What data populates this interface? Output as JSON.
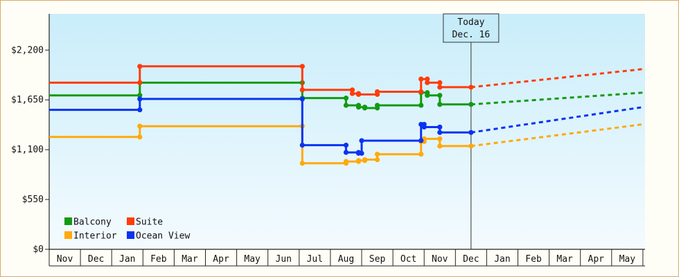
{
  "chart_data": {
    "type": "line",
    "title": "",
    "xlabel": "",
    "ylabel": "",
    "y_ticks": [
      "$0",
      "$550",
      "$1,100",
      "$1,650",
      "$2,200"
    ],
    "ylim": [
      0,
      2600
    ],
    "x_ticks": [
      "Nov",
      "Dec",
      "Jan",
      "Feb",
      "Mar",
      "Apr",
      "May",
      "Jun",
      "Jul",
      "Aug",
      "Sep",
      "Oct",
      "Nov",
      "Dec",
      "Jan",
      "Feb",
      "Mar",
      "Apr",
      "May"
    ],
    "xlim": [
      0,
      19
    ],
    "grid": false,
    "background": "light blue gradient",
    "legend_position": "bottom-left",
    "today_marker": {
      "line1": "Today",
      "line2": "Dec. 16",
      "x": 13.5
    },
    "series": [
      {
        "name": "Balcony",
        "color": "#139a10",
        "points": [
          [
            0,
            1700
          ],
          [
            2.9,
            1700
          ],
          [
            2.9,
            1840
          ],
          [
            8.1,
            1840
          ],
          [
            8.1,
            1670
          ],
          [
            9.5,
            1670
          ],
          [
            9.5,
            1590
          ],
          [
            9.9,
            1590
          ],
          [
            9.9,
            1570
          ],
          [
            10.1,
            1570
          ],
          [
            10.1,
            1560
          ],
          [
            10.5,
            1560
          ],
          [
            10.5,
            1590
          ],
          [
            11.9,
            1590
          ],
          [
            11.9,
            1730
          ],
          [
            12.1,
            1730
          ],
          [
            12.1,
            1700
          ],
          [
            12.5,
            1700
          ],
          [
            12.5,
            1600
          ],
          [
            13.5,
            1600
          ]
        ],
        "forecast": [
          [
            13.5,
            1600
          ],
          [
            19,
            1730
          ]
        ]
      },
      {
        "name": "Suite",
        "color": "#ff3c0a",
        "points": [
          [
            0,
            1840
          ],
          [
            2.9,
            1840
          ],
          [
            2.9,
            2020
          ],
          [
            8.1,
            2020
          ],
          [
            8.1,
            1760
          ],
          [
            9.7,
            1760
          ],
          [
            9.7,
            1720
          ],
          [
            9.9,
            1720
          ],
          [
            9.9,
            1710
          ],
          [
            10.5,
            1710
          ],
          [
            10.5,
            1740
          ],
          [
            11.9,
            1740
          ],
          [
            11.9,
            1880
          ],
          [
            12.1,
            1880
          ],
          [
            12.1,
            1840
          ],
          [
            12.5,
            1840
          ],
          [
            12.5,
            1790
          ],
          [
            13.5,
            1790
          ]
        ],
        "forecast": [
          [
            13.5,
            1790
          ],
          [
            19,
            1990
          ]
        ]
      },
      {
        "name": "Interior",
        "color": "#ffa90c",
        "points": [
          [
            0,
            1240
          ],
          [
            2.9,
            1240
          ],
          [
            2.9,
            1360
          ],
          [
            8.1,
            1360
          ],
          [
            8.1,
            950
          ],
          [
            9.5,
            950
          ],
          [
            9.5,
            970
          ],
          [
            9.9,
            970
          ],
          [
            9.9,
            980
          ],
          [
            10.1,
            980
          ],
          [
            10.1,
            990
          ],
          [
            10.5,
            990
          ],
          [
            10.5,
            1050
          ],
          [
            11.9,
            1050
          ],
          [
            11.9,
            1190
          ],
          [
            12.0,
            1190
          ],
          [
            12.0,
            1220
          ],
          [
            12.5,
            1220
          ],
          [
            12.5,
            1140
          ],
          [
            13.5,
            1140
          ]
        ],
        "forecast": [
          [
            13.5,
            1140
          ],
          [
            19,
            1380
          ]
        ]
      },
      {
        "name": "Ocean View",
        "color": "#0a32f2",
        "points": [
          [
            0,
            1540
          ],
          [
            2.9,
            1540
          ],
          [
            2.9,
            1660
          ],
          [
            8.1,
            1660
          ],
          [
            8.1,
            1150
          ],
          [
            9.5,
            1150
          ],
          [
            9.5,
            1070
          ],
          [
            9.9,
            1070
          ],
          [
            9.9,
            1060
          ],
          [
            10.0,
            1060
          ],
          [
            10.0,
            1200
          ],
          [
            11.9,
            1200
          ],
          [
            11.9,
            1380
          ],
          [
            12.0,
            1380
          ],
          [
            12.0,
            1350
          ],
          [
            12.5,
            1350
          ],
          [
            12.5,
            1290
          ],
          [
            13.5,
            1290
          ]
        ],
        "forecast": [
          [
            13.5,
            1290
          ],
          [
            19,
            1570
          ]
        ]
      }
    ]
  }
}
